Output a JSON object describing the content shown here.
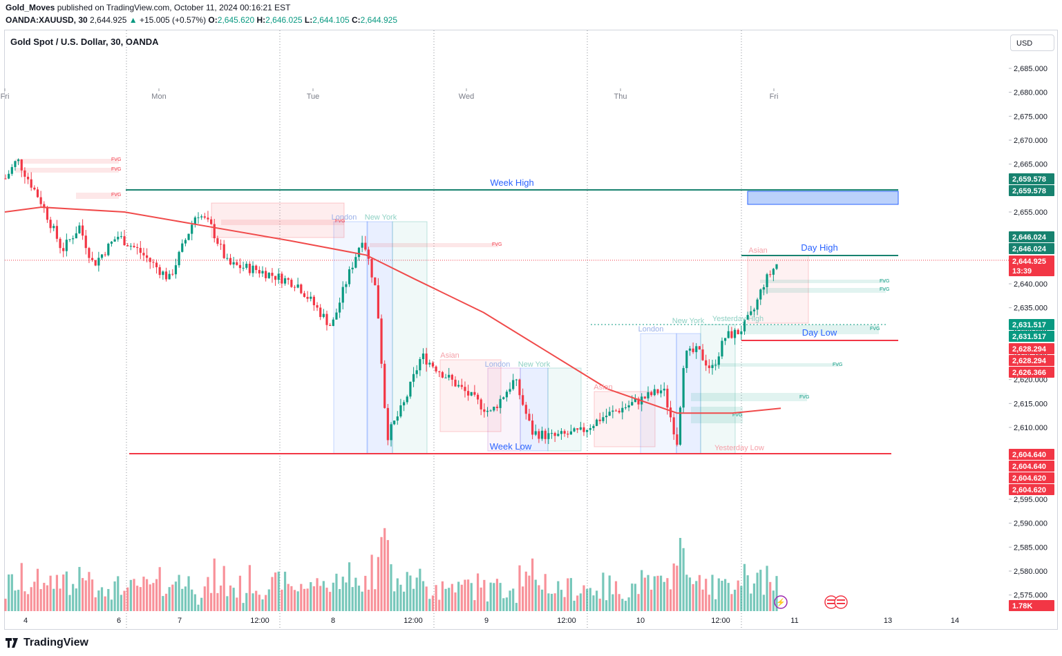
{
  "header": {
    "publisher": "Gold_Moves",
    "published_text": "published on TradingView.com, October 11, 2024 00:16:21 EST",
    "symbol": "OANDA:XAUUSD, 30",
    "last": "2,644.925",
    "change": "+15.005 (+0.57%)",
    "o_label": "O:",
    "o": "2,645.620",
    "h_label": "H:",
    "h": "2,646.025",
    "l_label": "L:",
    "l": "2,644.105",
    "c_label": "C:",
    "c": "2,644.925"
  },
  "chart_title": "Gold Spot / U.S. Dollar, 30, OANDA",
  "currency": "USD",
  "footer": {
    "brand": "TradingView"
  },
  "colors": {
    "up": "#089981",
    "down": "#f23645",
    "ma": "#f04a4a",
    "week_high": "#17826f",
    "blue_text": "#2962ff"
  },
  "chart_data": {
    "type": "candlestick",
    "ylim": [
      2570,
      2689
    ],
    "y_ticks": [
      2575,
      2580,
      2585,
      2590,
      2595,
      2600,
      2605,
      2610,
      2615,
      2620,
      2625,
      2630,
      2635,
      2640,
      2645,
      2650,
      2655,
      2660,
      2665,
      2670,
      2675,
      2680,
      2685
    ],
    "y_tick_labels": [
      "2,575.000",
      "2,580.000",
      "2,585.000",
      "2,590.000",
      "2,595.000",
      "2,600.000",
      "2,605.000",
      "2,610.000",
      "2,615.000",
      "2,620.000",
      "2,625.000",
      "2,630.000",
      "2,635.000",
      "2,640.000",
      "2,645.000",
      "2,650.000",
      "2,655.000",
      "2,660.000",
      "2,665.000",
      "2,670.000",
      "2,675.000",
      "2,680.000",
      "2,685.000"
    ],
    "x_labels": [
      "4",
      "6",
      "7",
      "12:00",
      "8",
      "12:00",
      "9",
      "12:00",
      "10",
      "12:00",
      "11",
      "13",
      "14"
    ],
    "day_labels": [
      "Fri",
      "Mon",
      "Tue",
      "Wed",
      "Thu",
      "Fri"
    ],
    "price_tags": [
      {
        "label": "2,659.578",
        "value": 2659.578,
        "color": "#17826f"
      },
      {
        "label": "2,659.578",
        "value": 2659.578,
        "color": "#17826f"
      },
      {
        "label": "2,646.024",
        "value": 2646.024,
        "color": "#17826f"
      },
      {
        "label": "2,646.024",
        "value": 2646.024,
        "color": "#17826f"
      },
      {
        "label": "2,644.925",
        "value": 2644.925,
        "color": "#f23645"
      },
      {
        "label": "13:39",
        "value": 2642.9,
        "color": "#f23645"
      },
      {
        "label": "2,631.517",
        "value": 2631.517,
        "color": "#089981"
      },
      {
        "label": "2,631.517",
        "value": 2631.517,
        "color": "#089981"
      },
      {
        "label": "2,628.294",
        "value": 2628.294,
        "color": "#f23645"
      },
      {
        "label": "2,628.294",
        "value": 2628.294,
        "color": "#f23645"
      },
      {
        "label": "2,626.366",
        "value": 2626.366,
        "color": "#f23645"
      },
      {
        "label": "2,604.640",
        "value": 2604.64,
        "color": "#f23645"
      },
      {
        "label": "2,604.640",
        "value": 2604.64,
        "color": "#f23645"
      },
      {
        "label": "2,604.620",
        "value": 2604.62,
        "color": "#f23645"
      },
      {
        "label": "2,604.620",
        "value": 2604.62,
        "color": "#f23645"
      },
      {
        "label": "1.78K",
        "value": 2573.3,
        "color": "#f23645"
      }
    ],
    "levels": [
      {
        "name": "Week High",
        "value": 2659.578
      },
      {
        "name": "Day High",
        "value": 2646.024
      },
      {
        "name": "Day Low",
        "value": 2628.294
      },
      {
        "name": "Week Low",
        "value": 2604.64
      },
      {
        "name": "Yesterday High",
        "value": 2631.517
      },
      {
        "name": "Yesterday Low",
        "value": 2604.62
      }
    ],
    "session_labels": [
      "London",
      "New York",
      "Asian",
      "London",
      "New York",
      "Asian",
      "London",
      "New York",
      "Asian",
      "Yesterday High",
      "Yesterday Low"
    ],
    "fvg_label": "FVG",
    "volume_last": "1.78K"
  }
}
